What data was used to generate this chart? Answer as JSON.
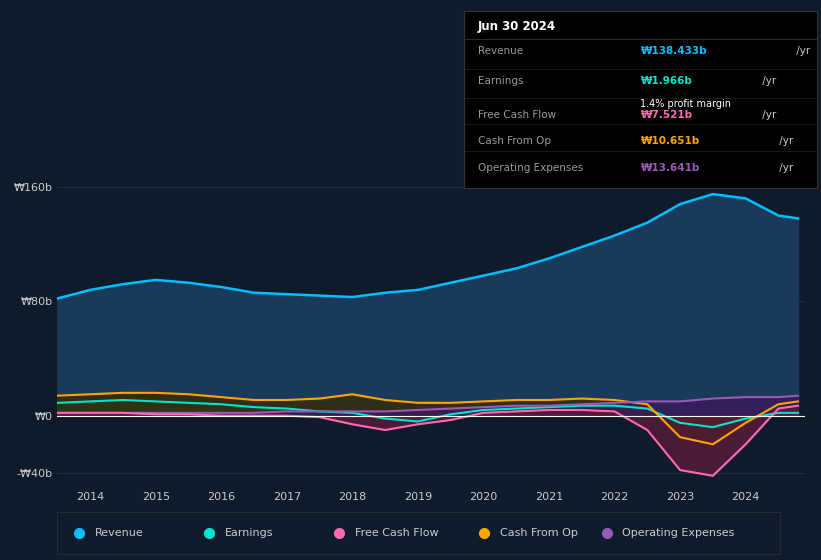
{
  "bg_color": "#0d1b2a",
  "plot_bg_color": "#0d1b2a",
  "ylim": [
    -50,
    185
  ],
  "yticks": [
    -40,
    0,
    80,
    160
  ],
  "ytick_labels": [
    "-₩40b",
    "₩0",
    "₩80b",
    "₩160b"
  ],
  "xlim": [
    2013.5,
    2024.9
  ],
  "xticks": [
    2014,
    2015,
    2016,
    2017,
    2018,
    2019,
    2020,
    2021,
    2022,
    2023,
    2024
  ],
  "revenue": {
    "x": [
      2013.5,
      2014.0,
      2014.5,
      2015.0,
      2015.5,
      2016.0,
      2016.5,
      2017.0,
      2017.5,
      2018.0,
      2018.5,
      2019.0,
      2019.5,
      2020.0,
      2020.5,
      2021.0,
      2021.5,
      2022.0,
      2022.5,
      2023.0,
      2023.5,
      2024.0,
      2024.5,
      2024.8
    ],
    "y": [
      82,
      88,
      92,
      95,
      93,
      90,
      86,
      85,
      84,
      83,
      86,
      88,
      93,
      98,
      103,
      110,
      118,
      126,
      135,
      148,
      155,
      152,
      140,
      138
    ],
    "color": "#00bfff",
    "fill_color": "#1a3a5c",
    "lw": 1.8
  },
  "earnings": {
    "x": [
      2013.5,
      2014.0,
      2014.5,
      2015.0,
      2015.5,
      2016.0,
      2016.5,
      2017.0,
      2017.5,
      2018.0,
      2018.5,
      2019.0,
      2019.5,
      2020.0,
      2020.5,
      2021.0,
      2021.5,
      2022.0,
      2022.5,
      2023.0,
      2023.5,
      2024.0,
      2024.5,
      2024.8
    ],
    "y": [
      9,
      10,
      11,
      10,
      9,
      8,
      6,
      5,
      3,
      2,
      -2,
      -4,
      1,
      4,
      5,
      6,
      7,
      7,
      5,
      -5,
      -8,
      -2,
      2,
      2
    ],
    "color": "#00e5cc",
    "fill_color": "#1a4a3a",
    "lw": 1.5
  },
  "free_cash_flow": {
    "x": [
      2013.5,
      2014.0,
      2014.5,
      2015.0,
      2015.5,
      2016.0,
      2016.5,
      2017.0,
      2017.5,
      2018.0,
      2018.5,
      2019.0,
      2019.5,
      2020.0,
      2020.5,
      2021.0,
      2021.5,
      2022.0,
      2022.5,
      2023.0,
      2023.5,
      2024.0,
      2024.5,
      2024.8
    ],
    "y": [
      2,
      2,
      2,
      1,
      1,
      0,
      0,
      0,
      -1,
      -6,
      -10,
      -6,
      -3,
      2,
      3,
      4,
      4,
      3,
      -10,
      -38,
      -42,
      -20,
      5,
      7
    ],
    "color": "#ff69b4",
    "fill_color": "#5a1a3a",
    "lw": 1.5
  },
  "cash_from_op": {
    "x": [
      2013.5,
      2014.0,
      2014.5,
      2015.0,
      2015.5,
      2016.0,
      2016.5,
      2017.0,
      2017.5,
      2018.0,
      2018.5,
      2019.0,
      2019.5,
      2020.0,
      2020.5,
      2021.0,
      2021.5,
      2022.0,
      2022.5,
      2023.0,
      2023.5,
      2024.0,
      2024.5,
      2024.8
    ],
    "y": [
      14,
      15,
      16,
      16,
      15,
      13,
      11,
      11,
      12,
      15,
      11,
      9,
      9,
      10,
      11,
      11,
      12,
      11,
      8,
      -15,
      -20,
      -5,
      8,
      10
    ],
    "color": "#ffa500",
    "fill_color": "#3a2a00",
    "lw": 1.5
  },
  "operating_expenses": {
    "x": [
      2013.5,
      2014.0,
      2014.5,
      2015.0,
      2015.5,
      2016.0,
      2016.5,
      2017.0,
      2017.5,
      2018.0,
      2018.5,
      2019.0,
      2019.5,
      2020.0,
      2020.5,
      2021.0,
      2021.5,
      2022.0,
      2022.5,
      2023.0,
      2023.5,
      2024.0,
      2024.5,
      2024.8
    ],
    "y": [
      2,
      2,
      2,
      2,
      2,
      2,
      2,
      3,
      3,
      3,
      3,
      4,
      5,
      6,
      7,
      7,
      8,
      9,
      10,
      10,
      12,
      13,
      13,
      14
    ],
    "color": "#9b59b6",
    "fill_color": "#3a1a5a",
    "lw": 1.5
  },
  "legend_items": [
    {
      "label": "Revenue",
      "color": "#00bfff"
    },
    {
      "label": "Earnings",
      "color": "#00e5cc"
    },
    {
      "label": "Free Cash Flow",
      "color": "#ff69b4"
    },
    {
      "label": "Cash From Op",
      "color": "#ffa500"
    },
    {
      "label": "Operating Expenses",
      "color": "#9b59b6"
    }
  ],
  "text_color": "#cccccc",
  "grid_color": "#1e3a52",
  "zero_line_color": "#ffffff",
  "tooltip": {
    "date": "Jun 30 2024",
    "rows": [
      {
        "label": "Revenue",
        "value": "₩138.433b",
        "suffix": " /yr",
        "color": "#00bfff",
        "extra": null,
        "extra_color": null
      },
      {
        "label": "Earnings",
        "value": "₩1.966b",
        "suffix": " /yr",
        "color": "#00e5cc",
        "extra": "1.4% profit margin",
        "extra_color": "#ffffff"
      },
      {
        "label": "Free Cash Flow",
        "value": "₩7.521b",
        "suffix": " /yr",
        "color": "#ff69b4",
        "extra": null,
        "extra_color": null
      },
      {
        "label": "Cash From Op",
        "value": "₩10.651b",
        "suffix": " /yr",
        "color": "#ffa500",
        "extra": null,
        "extra_color": null
      },
      {
        "label": "Operating Expenses",
        "value": "₩13.641b",
        "suffix": " /yr",
        "color": "#9b59b6",
        "extra": null,
        "extra_color": null
      }
    ]
  }
}
